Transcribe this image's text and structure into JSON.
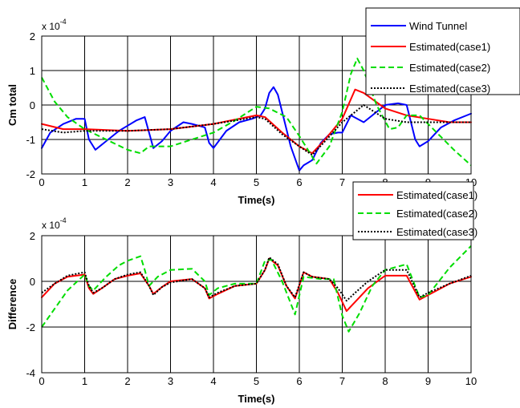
{
  "chart_data": [
    {
      "type": "line",
      "xlabel": "Time(s)",
      "ylabel": "Cm total",
      "scale_note": "x 10",
      "scale_exp": "-4",
      "xlim": [
        0,
        10
      ],
      "ylim": [
        -2,
        2
      ],
      "xticks": [
        0,
        1,
        2,
        3,
        4,
        5,
        6,
        7,
        8,
        9,
        10
      ],
      "yticks": [
        -2,
        -1,
        0,
        1,
        2
      ],
      "grid": true,
      "legend_position": "top-right",
      "series": [
        {
          "name": "Wind Tunnel",
          "color": "#0000ff",
          "dash": "solid",
          "points": [
            [
              0,
              -1.25
            ],
            [
              0.2,
              -0.8
            ],
            [
              0.5,
              -0.55
            ],
            [
              0.8,
              -0.4
            ],
            [
              1.0,
              -0.4
            ],
            [
              1.1,
              -1.0
            ],
            [
              1.25,
              -1.3
            ],
            [
              1.5,
              -1.05
            ],
            [
              1.8,
              -0.75
            ],
            [
              2.0,
              -0.6
            ],
            [
              2.2,
              -0.45
            ],
            [
              2.4,
              -0.35
            ],
            [
              2.5,
              -0.8
            ],
            [
              2.6,
              -1.25
            ],
            [
              2.8,
              -1.05
            ],
            [
              3.0,
              -0.75
            ],
            [
              3.3,
              -0.5
            ],
            [
              3.5,
              -0.55
            ],
            [
              3.8,
              -0.65
            ],
            [
              3.9,
              -1.1
            ],
            [
              4.0,
              -1.25
            ],
            [
              4.3,
              -0.75
            ],
            [
              4.6,
              -0.5
            ],
            [
              4.9,
              -0.4
            ],
            [
              5.1,
              -0.3
            ],
            [
              5.2,
              -0.1
            ],
            [
              5.3,
              0.35
            ],
            [
              5.4,
              0.52
            ],
            [
              5.5,
              0.3
            ],
            [
              5.6,
              -0.2
            ],
            [
              5.8,
              -1.2
            ],
            [
              6.0,
              -1.9
            ],
            [
              6.1,
              -1.75
            ],
            [
              6.3,
              -1.6
            ],
            [
              6.5,
              -1.1
            ],
            [
              6.7,
              -0.85
            ],
            [
              6.9,
              -0.8
            ],
            [
              7.0,
              -0.8
            ],
            [
              7.2,
              -0.3
            ],
            [
              7.5,
              -0.5
            ],
            [
              7.8,
              -0.2
            ],
            [
              8.0,
              0.0
            ],
            [
              8.3,
              0.05
            ],
            [
              8.5,
              0.0
            ],
            [
              8.6,
              -0.5
            ],
            [
              8.7,
              -1.0
            ],
            [
              8.8,
              -1.2
            ],
            [
              9.0,
              -1.05
            ],
            [
              9.3,
              -0.65
            ],
            [
              9.6,
              -0.45
            ],
            [
              10,
              -0.25
            ]
          ]
        },
        {
          "name": "Estimated(case1)",
          "color": "#ff0000",
          "dash": "solid",
          "points": [
            [
              0,
              -0.55
            ],
            [
              0.5,
              -0.7
            ],
            [
              1.0,
              -0.7
            ],
            [
              2.0,
              -0.75
            ],
            [
              3.0,
              -0.7
            ],
            [
              4.0,
              -0.55
            ],
            [
              5.0,
              -0.3
            ],
            [
              5.2,
              -0.35
            ],
            [
              5.6,
              -0.8
            ],
            [
              6.0,
              -1.2
            ],
            [
              6.3,
              -1.4
            ],
            [
              6.6,
              -1.0
            ],
            [
              7.0,
              -0.4
            ],
            [
              7.3,
              0.45
            ],
            [
              7.5,
              0.35
            ],
            [
              8.0,
              -0.1
            ],
            [
              8.5,
              -0.3
            ],
            [
              9.0,
              -0.4
            ],
            [
              9.5,
              -0.5
            ],
            [
              10,
              -0.5
            ]
          ]
        },
        {
          "name": "Estimated(case2)",
          "color": "#00dd00",
          "dash": "dashed",
          "points": [
            [
              0,
              0.8
            ],
            [
              0.3,
              0.1
            ],
            [
              0.6,
              -0.35
            ],
            [
              1.0,
              -0.7
            ],
            [
              1.5,
              -1.0
            ],
            [
              2.0,
              -1.3
            ],
            [
              2.3,
              -1.4
            ],
            [
              2.5,
              -1.2
            ],
            [
              3.0,
              -1.2
            ],
            [
              3.5,
              -1.0
            ],
            [
              4.0,
              -0.8
            ],
            [
              4.5,
              -0.45
            ],
            [
              5.0,
              -0.05
            ],
            [
              5.3,
              -0.1
            ],
            [
              5.7,
              -0.35
            ],
            [
              6.0,
              -0.9
            ],
            [
              6.4,
              -1.7
            ],
            [
              6.7,
              -1.2
            ],
            [
              7.0,
              -0.2
            ],
            [
              7.2,
              0.9
            ],
            [
              7.35,
              1.35
            ],
            [
              7.5,
              1.0
            ],
            [
              7.8,
              0.0
            ],
            [
              8.1,
              -0.7
            ],
            [
              8.3,
              -0.65
            ],
            [
              8.5,
              -0.3
            ],
            [
              8.8,
              -0.3
            ],
            [
              9.2,
              -0.8
            ],
            [
              9.6,
              -1.3
            ],
            [
              10,
              -1.75
            ]
          ]
        },
        {
          "name": "Estimated(case3)",
          "color": "#000000",
          "dash": "dotted",
          "points": [
            [
              0,
              -0.7
            ],
            [
              0.5,
              -0.8
            ],
            [
              1.0,
              -0.75
            ],
            [
              2.0,
              -0.75
            ],
            [
              3.0,
              -0.7
            ],
            [
              4.0,
              -0.55
            ],
            [
              5.0,
              -0.35
            ],
            [
              5.2,
              -0.4
            ],
            [
              5.6,
              -0.85
            ],
            [
              6.0,
              -1.2
            ],
            [
              6.3,
              -1.45
            ],
            [
              6.6,
              -1.05
            ],
            [
              7.0,
              -0.5
            ],
            [
              7.3,
              -0.2
            ],
            [
              7.5,
              0.0
            ],
            [
              8.0,
              -0.4
            ],
            [
              8.5,
              -0.5
            ],
            [
              9.0,
              -0.5
            ],
            [
              10,
              -0.5
            ]
          ]
        }
      ]
    },
    {
      "type": "line",
      "xlabel": "Time(s)",
      "ylabel": "Difference",
      "scale_note": "x 10",
      "scale_exp": "-4",
      "xlim": [
        0,
        10
      ],
      "ylim": [
        -4,
        2
      ],
      "xticks": [
        0,
        1,
        2,
        3,
        4,
        5,
        6,
        7,
        8,
        9,
        10
      ],
      "yticks": [
        -4,
        -2,
        0,
        2
      ],
      "grid": true,
      "legend_position": "top-right",
      "series": [
        {
          "name": "Estimated(case1)",
          "color": "#ff0000",
          "dash": "solid",
          "points": [
            [
              0,
              -0.7
            ],
            [
              0.3,
              -0.1
            ],
            [
              0.6,
              0.2
            ],
            [
              1.0,
              0.3
            ],
            [
              1.1,
              -0.3
            ],
            [
              1.2,
              -0.55
            ],
            [
              1.4,
              -0.3
            ],
            [
              1.7,
              0.1
            ],
            [
              2.0,
              0.25
            ],
            [
              2.3,
              0.35
            ],
            [
              2.5,
              -0.2
            ],
            [
              2.6,
              -0.55
            ],
            [
              2.8,
              -0.25
            ],
            [
              3.0,
              0.0
            ],
            [
              3.5,
              0.1
            ],
            [
              3.8,
              -0.3
            ],
            [
              3.9,
              -0.75
            ],
            [
              4.1,
              -0.55
            ],
            [
              4.5,
              -0.2
            ],
            [
              5.0,
              -0.1
            ],
            [
              5.2,
              0.5
            ],
            [
              5.3,
              1.0
            ],
            [
              5.5,
              0.7
            ],
            [
              5.7,
              -0.2
            ],
            [
              5.9,
              -0.75
            ],
            [
              6.1,
              0.4
            ],
            [
              6.3,
              0.2
            ],
            [
              6.7,
              0.1
            ],
            [
              6.9,
              -0.5
            ],
            [
              7.1,
              -1.3
            ],
            [
              7.3,
              -0.9
            ],
            [
              7.6,
              -0.3
            ],
            [
              8.0,
              0.25
            ],
            [
              8.5,
              0.25
            ],
            [
              8.8,
              -0.8
            ],
            [
              9.0,
              -0.6
            ],
            [
              9.5,
              -0.1
            ],
            [
              10,
              0.2
            ]
          ]
        },
        {
          "name": "Estimated(case2)",
          "color": "#00dd00",
          "dash": "dashed",
          "points": [
            [
              0,
              -2.0
            ],
            [
              0.3,
              -1.2
            ],
            [
              0.6,
              -0.4
            ],
            [
              1.0,
              0.3
            ],
            [
              1.1,
              -0.2
            ],
            [
              1.2,
              -0.4
            ],
            [
              1.5,
              0.2
            ],
            [
              1.8,
              0.7
            ],
            [
              2.0,
              0.9
            ],
            [
              2.3,
              1.1
            ],
            [
              2.4,
              0.5
            ],
            [
              2.5,
              -0.2
            ],
            [
              2.7,
              0.2
            ],
            [
              3.0,
              0.5
            ],
            [
              3.5,
              0.55
            ],
            [
              3.8,
              0.0
            ],
            [
              3.9,
              -0.6
            ],
            [
              4.1,
              -0.3
            ],
            [
              4.5,
              -0.1
            ],
            [
              5.0,
              -0.1
            ],
            [
              5.2,
              0.9
            ],
            [
              5.35,
              0.95
            ],
            [
              5.6,
              0.0
            ],
            [
              5.9,
              -1.45
            ],
            [
              6.1,
              0.2
            ],
            [
              6.5,
              0.1
            ],
            [
              6.8,
              0.1
            ],
            [
              7.0,
              -1.5
            ],
            [
              7.15,
              -2.2
            ],
            [
              7.4,
              -1.4
            ],
            [
              7.7,
              -0.2
            ],
            [
              8.0,
              0.5
            ],
            [
              8.5,
              0.75
            ],
            [
              8.8,
              -0.7
            ],
            [
              9.0,
              -0.6
            ],
            [
              9.5,
              0.6
            ],
            [
              10,
              1.55
            ]
          ]
        },
        {
          "name": "Estimated(case3)",
          "color": "#000000",
          "dash": "dotted",
          "points": [
            [
              0,
              -0.5
            ],
            [
              0.3,
              -0.1
            ],
            [
              0.6,
              0.25
            ],
            [
              1.0,
              0.4
            ],
            [
              1.1,
              -0.2
            ],
            [
              1.2,
              -0.5
            ],
            [
              1.4,
              -0.3
            ],
            [
              1.7,
              0.1
            ],
            [
              2.0,
              0.3
            ],
            [
              2.3,
              0.4
            ],
            [
              2.5,
              -0.2
            ],
            [
              2.6,
              -0.6
            ],
            [
              2.8,
              -0.25
            ],
            [
              3.0,
              -0.05
            ],
            [
              3.5,
              0.1
            ],
            [
              3.8,
              -0.3
            ],
            [
              3.9,
              -0.7
            ],
            [
              4.1,
              -0.5
            ],
            [
              4.5,
              -0.2
            ],
            [
              5.0,
              -0.1
            ],
            [
              5.2,
              0.5
            ],
            [
              5.3,
              1.05
            ],
            [
              5.5,
              0.75
            ],
            [
              5.7,
              -0.2
            ],
            [
              5.9,
              -0.7
            ],
            [
              6.1,
              0.4
            ],
            [
              6.3,
              0.2
            ],
            [
              6.7,
              0.1
            ],
            [
              6.9,
              -0.3
            ],
            [
              7.1,
              -0.85
            ],
            [
              7.3,
              -0.5
            ],
            [
              7.6,
              0.0
            ],
            [
              8.0,
              0.5
            ],
            [
              8.5,
              0.5
            ],
            [
              8.8,
              -0.7
            ],
            [
              9.0,
              -0.5
            ],
            [
              9.5,
              -0.1
            ],
            [
              10,
              0.25
            ]
          ]
        }
      ]
    }
  ]
}
